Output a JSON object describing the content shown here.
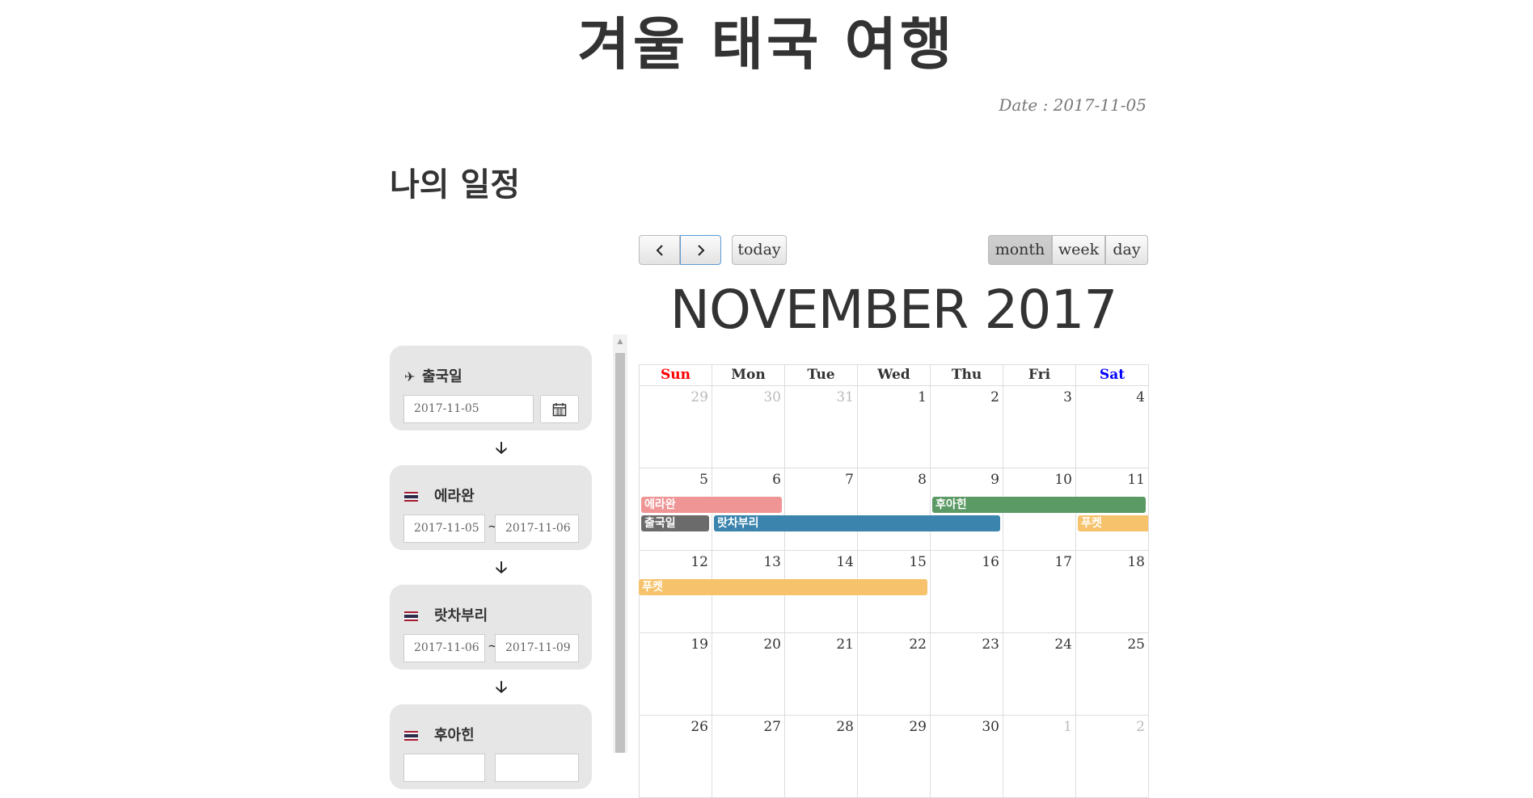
{
  "page": {
    "title": "겨울 태국 여행",
    "date_line": "Date : 2017-11-05",
    "section_title": "나의 일정"
  },
  "sidebar": {
    "cards": [
      {
        "label": "출국일",
        "icon": "plane-icon",
        "date": "2017-11-05"
      },
      {
        "label": "에라완",
        "icon": "thailand-flag-icon",
        "start": "2017-11-05",
        "end": "2017-11-06"
      },
      {
        "label": "랏차부리",
        "icon": "thailand-flag-icon",
        "start": "2017-11-06",
        "end": "2017-11-09"
      },
      {
        "label": "후아힌",
        "icon": "thailand-flag-icon"
      }
    ],
    "separator": "~"
  },
  "toolbar": {
    "prev_icon": "chevron-left-icon",
    "next_icon": "chevron-right-icon",
    "today": "today",
    "views": [
      "month",
      "week",
      "day"
    ],
    "active_view": "month"
  },
  "calendar": {
    "title": "NOVEMBER 2017",
    "weekdays": [
      "Sun",
      "Mon",
      "Tue",
      "Wed",
      "Thu",
      "Fri",
      "Sat"
    ],
    "weekday_colors": {
      "Sun": "#ff0000",
      "Sat": "#0000ff",
      "default": "#333333"
    },
    "weeks": [
      [
        "29",
        "30",
        "31",
        "1",
        "2",
        "3",
        "4"
      ],
      [
        "5",
        "6",
        "7",
        "8",
        "9",
        "10",
        "11"
      ],
      [
        "12",
        "13",
        "14",
        "15",
        "16",
        "17",
        "18"
      ],
      [
        "19",
        "20",
        "21",
        "22",
        "23",
        "24",
        "25"
      ],
      [
        "26",
        "27",
        "28",
        "29",
        "30",
        "1",
        "2"
      ]
    ],
    "events": [
      {
        "title": "에라완",
        "color": "#f09595"
      },
      {
        "title": "출국일",
        "color": "#6b6b6b"
      },
      {
        "title": "랏차부리",
        "color": "#3a84ad"
      },
      {
        "title": "후아힌",
        "color": "#5b9a64"
      },
      {
        "title": "푸켓",
        "color": "#f6c36c"
      },
      {
        "title": "푸켓",
        "color": "#f6c36c"
      }
    ]
  }
}
